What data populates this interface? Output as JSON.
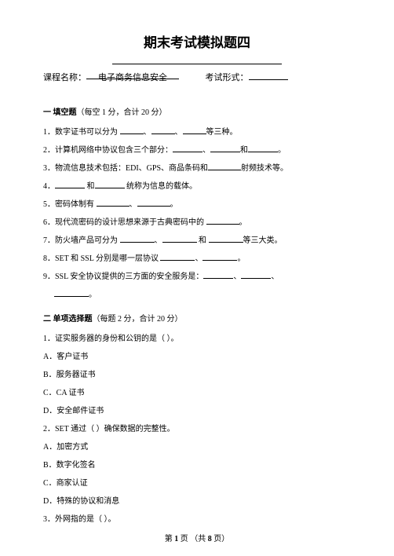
{
  "title": {
    "text": "期末考试模拟题四",
    "fontsize": 17
  },
  "course": {
    "label": "课程名称：",
    "value": "电子商务信息安全",
    "form_label": "考试形式：",
    "fontsize": 11,
    "value_uline_w": 118,
    "form_uline_w": 50
  },
  "fontsize_body": 10,
  "section1": {
    "header": "一  填空题",
    "scoring": "（每空 1 分，合计 20 分）",
    "items": [
      {
        "n": "1．",
        "parts": [
          "数字证书可以分为 ",
          30,
          "、",
          30,
          "、",
          30,
          "等三种。"
        ]
      },
      {
        "n": "2．",
        "parts": [
          "计算机网络中协议包含三个部分：",
          38,
          "、",
          38,
          "和",
          38,
          "。"
        ]
      },
      {
        "n": "3．",
        "parts": [
          "物流信息技术包括：EDI、GPS、商品条码和",
          42,
          "射频技术等。"
        ]
      },
      {
        "n": "4．",
        "parts": [
          "",
          38,
          " 和",
          38,
          " 统称为信息的载体。"
        ]
      },
      {
        "n": "5．",
        "parts": [
          "密码体制有 ",
          42,
          "、",
          42,
          "。"
        ]
      },
      {
        "n": "6．",
        "parts": [
          "现代流密码的设计思想来源于古典密码中的 ",
          42,
          "。"
        ]
      },
      {
        "n": "7．",
        "parts": [
          "防火墙产品可分为 ",
          44,
          "、",
          44,
          " 和 ",
          44,
          "等三大类。"
        ]
      },
      {
        "n": "8．",
        "parts": [
          "SET 和 SSL 分别是哪一层协议 ",
          44,
          "、",
          44,
          "。"
        ]
      },
      {
        "n": "9．",
        "parts": [
          "SSL 安全协议提供的三方面的安全服务是：",
          38,
          "、",
          38,
          "、"
        ]
      },
      {
        "n": "",
        "parts": [
          "",
          44,
          "。"
        ],
        "indent": true
      }
    ]
  },
  "section2": {
    "header": "二  单项选择题",
    "scoring": "（每题 2 分，合计 20 分）",
    "items": [
      {
        "n": "1．",
        "text": "证实服务器的身份和公钥的是（ ）。"
      },
      {
        "n": "A．",
        "text": "客户证书"
      },
      {
        "n": "B．",
        "text": "服务器证书"
      },
      {
        "n": "C．",
        "text": "CA 证书"
      },
      {
        "n": "D．",
        "text": "安全邮件证书"
      },
      {
        "n": "2．",
        "text": "SET 通过（ ）确保数据的完整性。"
      },
      {
        "n": "A．",
        "text": "加密方式"
      },
      {
        "n": "B．",
        "text": "数字化签名"
      },
      {
        "n": "C．",
        "text": "商家认证"
      },
      {
        "n": "D．",
        "text": "特殊的协议和消息"
      },
      {
        "n": "3．",
        "text": "外网指的是（ ）。"
      }
    ]
  },
  "footer": {
    "prefix": "第 ",
    "page": "1",
    "mid": " 页 （共 ",
    "total": "8",
    "suffix": " 页）",
    "fontsize": 10
  }
}
